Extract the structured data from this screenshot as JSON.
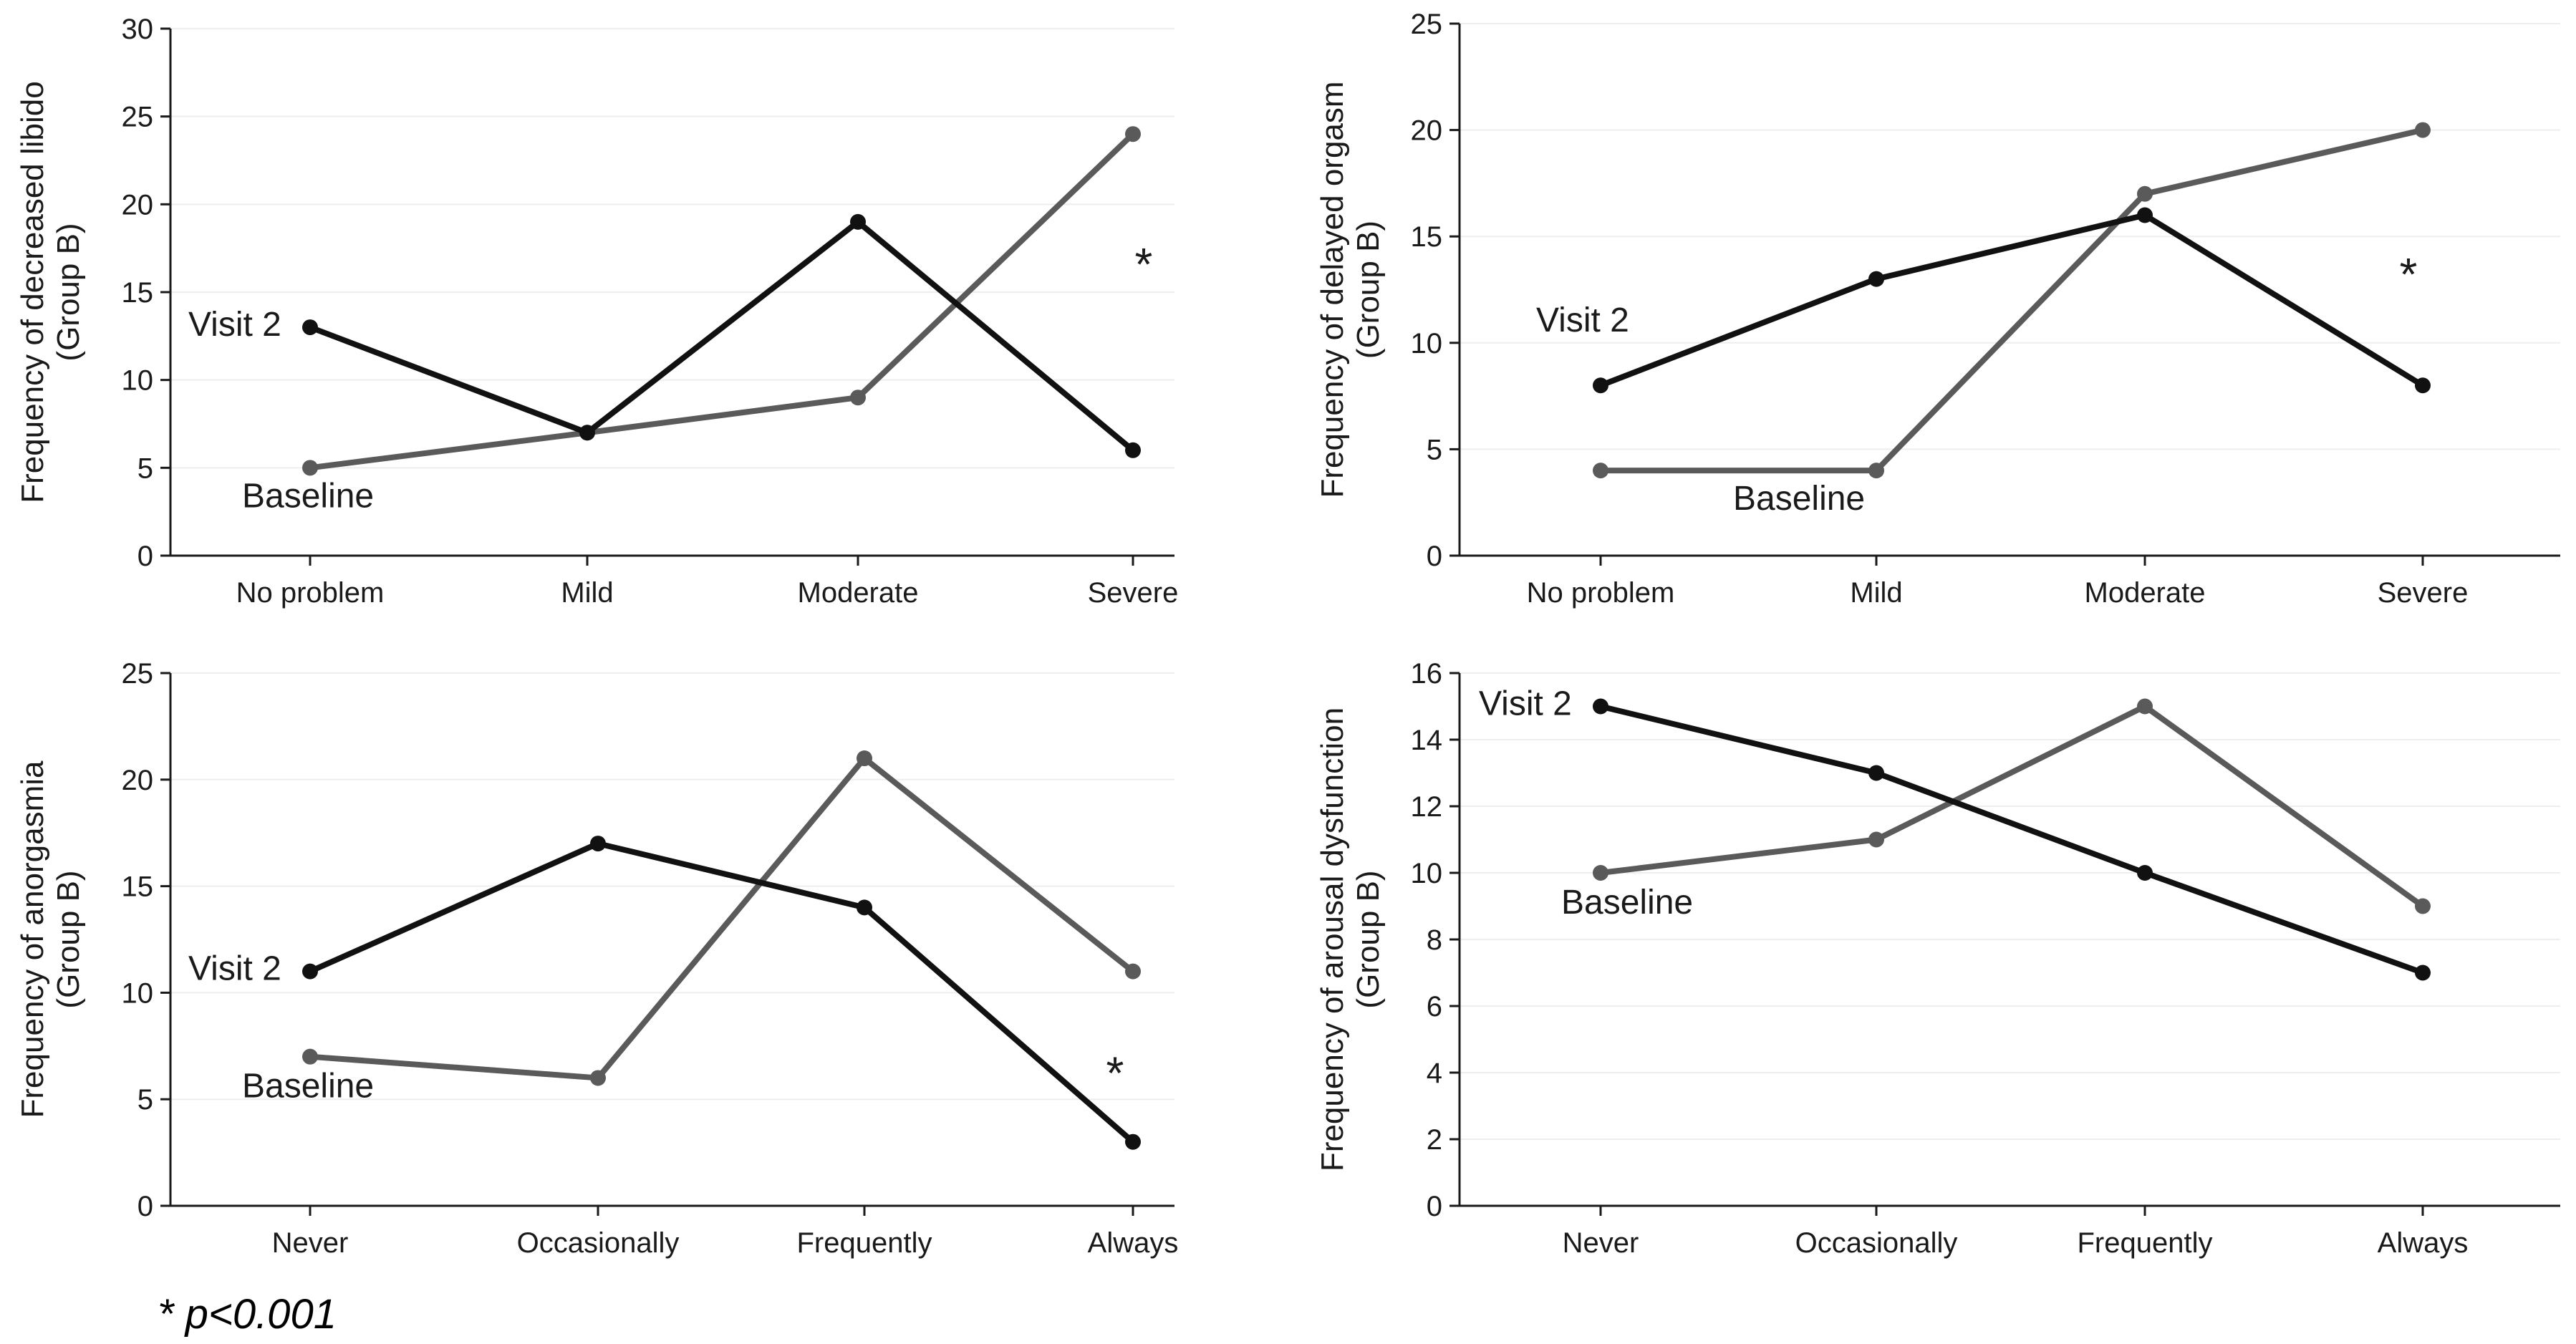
{
  "footnote": "* p<0.001",
  "colors": {
    "visit2": "#111111",
    "baseline": "#5a5a5a"
  },
  "chart_data": [
    {
      "type": "line",
      "ylabel_line1": "Frequency of decreased libido",
      "ylabel_line2": "(Group B)",
      "ylim": [
        0,
        30
      ],
      "yticks": [
        0,
        5,
        10,
        15,
        20,
        25,
        30
      ],
      "categories": [
        "No problem",
        "Mild",
        "Moderate",
        "Severe"
      ],
      "series": [
        {
          "name": "Visit 2",
          "values": [
            13,
            7,
            19,
            6
          ]
        },
        {
          "name": "Baseline",
          "values": [
            5,
            7,
            9,
            24
          ]
        }
      ],
      "annotation": "*"
    },
    {
      "type": "line",
      "ylabel_line1": "Frequency of delayed orgasm",
      "ylabel_line2": "(Group B)",
      "ylim": [
        0,
        25
      ],
      "yticks": [
        0,
        5,
        10,
        15,
        20,
        25
      ],
      "categories": [
        "No problem",
        "Mild",
        "Moderate",
        "Severe"
      ],
      "series": [
        {
          "name": "Visit 2",
          "values": [
            8,
            13,
            16,
            8
          ]
        },
        {
          "name": "Baseline",
          "values": [
            4,
            4,
            17,
            20
          ]
        }
      ],
      "annotation": "*"
    },
    {
      "type": "line",
      "ylabel_line1": "Frequency of anorgasmia",
      "ylabel_line2": "(Group B)",
      "ylim": [
        0,
        25
      ],
      "yticks": [
        0,
        5,
        10,
        15,
        20,
        25
      ],
      "categories": [
        "Never",
        "Occasionally",
        "Frequently",
        "Always"
      ],
      "series": [
        {
          "name": "Visit 2",
          "values": [
            11,
            17,
            14,
            3
          ]
        },
        {
          "name": "Baseline",
          "values": [
            7,
            6,
            21,
            11
          ]
        }
      ],
      "annotation": "*"
    },
    {
      "type": "line",
      "ylabel_line1": "Frequency of arousal dysfunction",
      "ylabel_line2": "(Group B)",
      "ylim": [
        0,
        16
      ],
      "yticks": [
        0,
        2,
        4,
        6,
        8,
        10,
        12,
        14,
        16
      ],
      "categories": [
        "Never",
        "Occasionally",
        "Frequently",
        "Always"
      ],
      "series": [
        {
          "name": "Visit 2",
          "values": [
            15,
            13,
            10,
            7
          ]
        },
        {
          "name": "Baseline",
          "values": [
            10,
            11,
            15,
            9
          ]
        }
      ],
      "annotation": ""
    }
  ]
}
